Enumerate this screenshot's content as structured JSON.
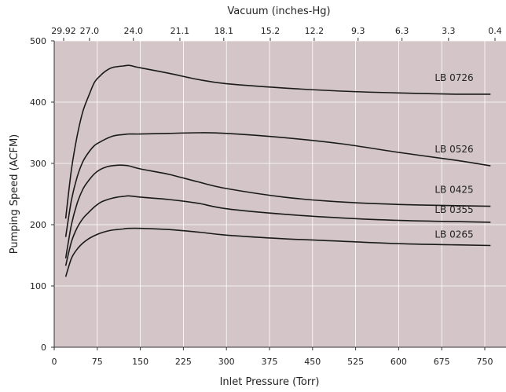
{
  "chart_data": {
    "type": "line",
    "title": "",
    "xlabel": "Inlet Pressure (Torr)",
    "ylabel": "Pumping Speed (ACFM)",
    "top_axis_label": "Vacuum (inches-Hg)",
    "xlim": [
      0,
      770
    ],
    "ylim": [
      0,
      500
    ],
    "x_ticks": [
      0,
      75,
      150,
      225,
      300,
      375,
      450,
      525,
      600,
      675,
      750
    ],
    "y_ticks": [
      0,
      100,
      200,
      300,
      400,
      500
    ],
    "top_ticks": [
      {
        "x": 0,
        "label": "29.92"
      },
      {
        "x": 50,
        "label": "27.0"
      },
      {
        "x": 135,
        "label": "24.0"
      },
      {
        "x": 225,
        "label": "21.1"
      },
      {
        "x": 310,
        "label": "18.1"
      },
      {
        "x": 400,
        "label": "15.2"
      },
      {
        "x": 485,
        "label": "12.2"
      },
      {
        "x": 570,
        "label": "9.3"
      },
      {
        "x": 655,
        "label": "6.3"
      },
      {
        "x": 745,
        "label": "3.3"
      },
      {
        "x": 835,
        "label": "0.4"
      }
    ],
    "grid": true,
    "background_color": "#d3c5c8",
    "line_color": "#1a1a1a",
    "series": [
      {
        "name": "LB 0726",
        "x": [
          20,
          30,
          40,
          50,
          60,
          70,
          80,
          90,
          100,
          110,
          120,
          130,
          140,
          150,
          200,
          250,
          300,
          400,
          500,
          600,
          700,
          760
        ],
        "y": [
          210,
          290,
          345,
          385,
          410,
          432,
          443,
          451,
          456,
          458,
          459,
          460,
          458,
          456,
          447,
          437,
          430,
          423,
          418,
          415,
          413,
          413
        ]
      },
      {
        "name": "LB 0526",
        "x": [
          20,
          30,
          40,
          50,
          60,
          70,
          80,
          90,
          100,
          110,
          120,
          130,
          150,
          200,
          250,
          300,
          400,
          500,
          600,
          700,
          760
        ],
        "y": [
          180,
          240,
          278,
          303,
          318,
          329,
          335,
          340,
          344,
          346,
          347,
          348,
          348,
          349,
          350,
          349,
          342,
          332,
          318,
          305,
          296
        ]
      },
      {
        "name": "LB 0425",
        "x": [
          20,
          30,
          40,
          50,
          60,
          70,
          80,
          90,
          100,
          110,
          120,
          130,
          150,
          200,
          250,
          300,
          400,
          500,
          600,
          700,
          760
        ],
        "y": [
          145,
          200,
          235,
          258,
          272,
          283,
          290,
          294,
          296,
          297,
          297,
          296,
          291,
          282,
          270,
          259,
          245,
          237,
          233,
          231,
          230
        ]
      },
      {
        "name": "LB 0355",
        "x": [
          20,
          30,
          40,
          50,
          60,
          70,
          80,
          90,
          100,
          110,
          120,
          130,
          150,
          200,
          250,
          300,
          400,
          500,
          600,
          700,
          760
        ],
        "y": [
          133,
          172,
          195,
          210,
          220,
          229,
          236,
          240,
          243,
          245,
          246,
          247,
          245,
          241,
          235,
          226,
          217,
          211,
          207,
          205,
          204
        ]
      },
      {
        "name": "LB 0265",
        "x": [
          20,
          30,
          40,
          50,
          60,
          70,
          80,
          90,
          100,
          110,
          120,
          130,
          150,
          200,
          250,
          300,
          400,
          500,
          600,
          700,
          760
        ],
        "y": [
          115,
          145,
          160,
          170,
          177,
          182,
          186,
          189,
          191,
          192,
          193,
          194,
          194,
          192,
          188,
          183,
          177,
          173,
          169,
          167,
          166
        ]
      }
    ]
  }
}
